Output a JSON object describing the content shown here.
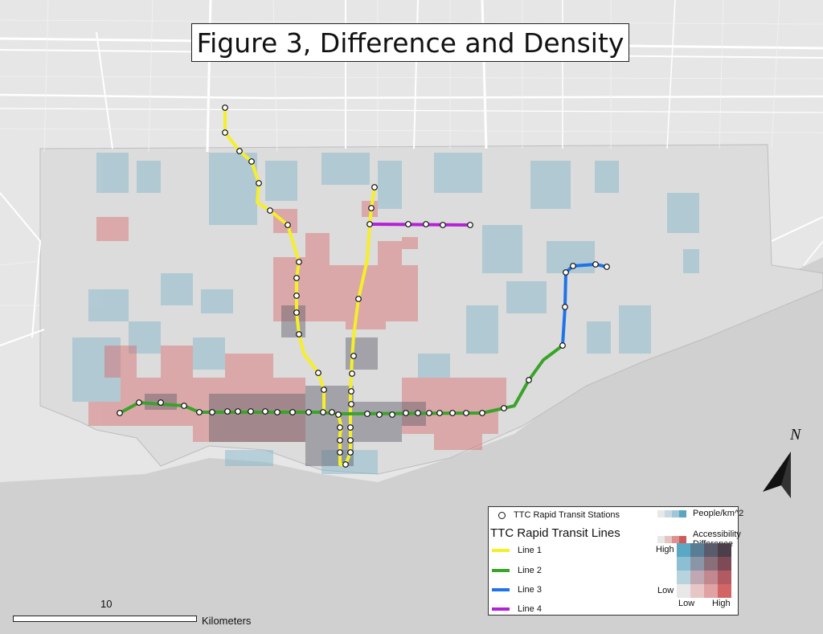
{
  "title": "Figure 3, Difference and Density",
  "north_label": "N",
  "colors": {
    "background": "#e6e6e6",
    "city_fill": "#dcdcdc",
    "water": "#cfcfcf",
    "roads": "#ffffff",
    "density_blue": "#7fb3c9",
    "access_red": "#d96a6a",
    "dark_overlap": "#5e5e6b"
  },
  "lines": [
    {
      "name": "Line 1",
      "color": "#f5ef2a",
      "icon": "line-1-symbol"
    },
    {
      "name": "Line 2",
      "color": "#3aa32a",
      "icon": "line-2-symbol"
    },
    {
      "name": "Line 3",
      "color": "#1e73e8",
      "icon": "line-3-symbol"
    },
    {
      "name": "Line 4",
      "color": "#b521d6",
      "icon": "line-4-symbol"
    }
  ],
  "legend": {
    "stations_label": "TTC Rapid Transit Stations",
    "lines_title": "TTC Rapid Transit Lines",
    "density_label": "People/km^2",
    "access_label": "Accessibility Difference",
    "high_label": "High",
    "low_label": "Low",
    "x_low_label": "Low",
    "x_high_label": "High",
    "density_ramp": [
      "#e8e8e8",
      "#c6d9e0",
      "#9fc7d6",
      "#5aa5c2"
    ],
    "access_ramp": [
      "#e8e8e8",
      "#e4c3c3",
      "#dc9090",
      "#cf5a5a"
    ],
    "bivariate": [
      [
        "#5ba8c4",
        "#587e95",
        "#5b5b6e",
        "#4b3f49"
      ],
      [
        "#8cbfd1",
        "#8a96a8",
        "#8a6e7a",
        "#7e4a55"
      ],
      [
        "#b7d3dd",
        "#bfa8b2",
        "#c28890",
        "#b25a62"
      ],
      [
        "#e8e8e8",
        "#e7c6c6",
        "#e0a2a2",
        "#d46565"
      ]
    ]
  },
  "scale": {
    "value": "10",
    "unit": "Kilometers"
  }
}
